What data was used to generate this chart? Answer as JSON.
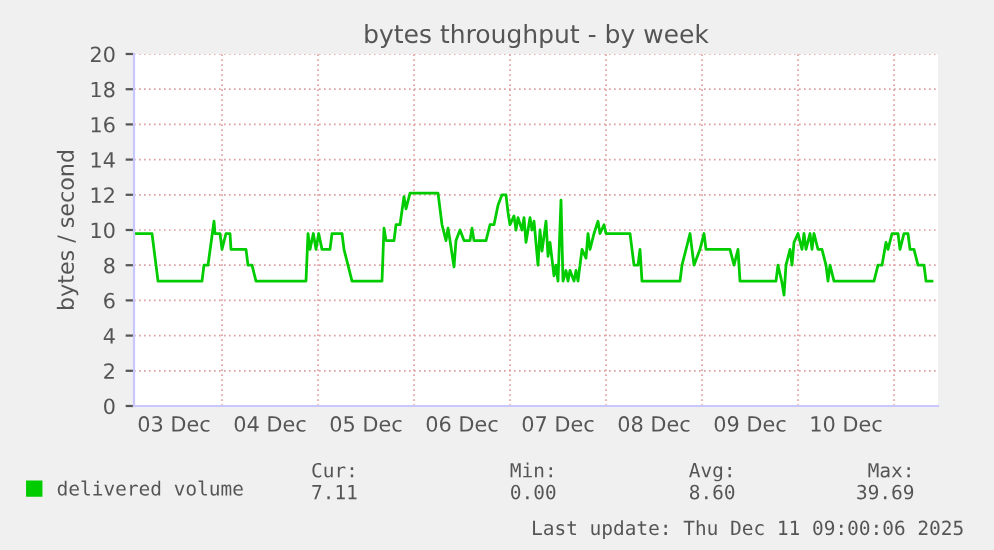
{
  "chart_data": {
    "type": "line",
    "title": "bytes throughput - by week",
    "ylabel": "bytes / second",
    "x": [
      "2025-12-03T02:00",
      "2025-12-03T06:30",
      "2025-12-03T07:30",
      "2025-12-03T08:00",
      "2025-12-03T19:00",
      "2025-12-03T19:30",
      "2025-12-03T20:30",
      "2025-12-03T22:00",
      "2025-12-03T22:15",
      "2025-12-03T23:30",
      "2025-12-04T00:00",
      "2025-12-04T01:00",
      "2025-12-04T02:00",
      "2025-12-04T02:15",
      "2025-12-04T06:00",
      "2025-12-04T06:30",
      "2025-12-04T07:30",
      "2025-12-04T08:30",
      "2025-12-04T21:00",
      "2025-12-04T21:30",
      "2025-12-04T22:00",
      "2025-12-04T22:50",
      "2025-12-04T23:30",
      "2025-12-05T00:10",
      "2025-12-05T01:00",
      "2025-12-05T03:00",
      "2025-12-05T03:30",
      "2025-12-05T06:00",
      "2025-12-05T06:30",
      "2025-12-05T07:30",
      "2025-12-05T08:30",
      "2025-12-05T16:00",
      "2025-12-05T16:30",
      "2025-12-05T17:00",
      "2025-12-05T19:00",
      "2025-12-05T19:30",
      "2025-12-05T20:30",
      "2025-12-05T21:30",
      "2025-12-05T22:00",
      "2025-12-05T23:00",
      "2025-12-06T06:00",
      "2025-12-06T06:30",
      "2025-12-06T07:00",
      "2025-12-06T08:00",
      "2025-12-06T08:30",
      "2025-12-06T09:00",
      "2025-12-06T10:00",
      "2025-12-06T10:30",
      "2025-12-06T11:30",
      "2025-12-06T12:30",
      "2025-12-06T14:00",
      "2025-12-06T14:30",
      "2025-12-06T15:00",
      "2025-12-06T18:00",
      "2025-12-06T19:00",
      "2025-12-06T20:00",
      "2025-12-06T21:00",
      "2025-12-06T22:00",
      "2025-12-06T23:00",
      "2025-12-06T23:30",
      "2025-12-07T00:00",
      "2025-12-07T01:00",
      "2025-12-07T01:30",
      "2025-12-07T02:00",
      "2025-12-07T03:00",
      "2025-12-07T03:30",
      "2025-12-07T04:00",
      "2025-12-07T05:00",
      "2025-12-07T05:30",
      "2025-12-07T06:00",
      "2025-12-07T07:00",
      "2025-12-07T07:30",
      "2025-12-07T08:00",
      "2025-12-07T09:00",
      "2025-12-07T09:30",
      "2025-12-07T10:00",
      "2025-12-07T11:00",
      "2025-12-07T11:30",
      "2025-12-07T12:00",
      "2025-12-07T12:45",
      "2025-12-07T13:15",
      "2025-12-07T14:00",
      "2025-12-07T14:30",
      "2025-12-07T15:00",
      "2025-12-07T16:00",
      "2025-12-07T16:30",
      "2025-12-07T17:00",
      "2025-12-07T18:00",
      "2025-12-07T19:00",
      "2025-12-07T19:30",
      "2025-12-07T20:00",
      "2025-12-07T21:00",
      "2025-12-07T22:00",
      "2025-12-07T22:30",
      "2025-12-07T23:30",
      "2025-12-08T00:00",
      "2025-12-08T06:00",
      "2025-12-08T06:30",
      "2025-12-08T07:00",
      "2025-12-08T08:00",
      "2025-12-08T08:30",
      "2025-12-08T09:00",
      "2025-12-08T18:30",
      "2025-12-08T19:00",
      "2025-12-08T20:00",
      "2025-12-08T21:00",
      "2025-12-08T22:00",
      "2025-12-08T23:30",
      "2025-12-09T00:30",
      "2025-12-09T01:00",
      "2025-12-09T07:00",
      "2025-12-09T08:00",
      "2025-12-09T09:00",
      "2025-12-09T09:30",
      "2025-12-09T18:30",
      "2025-12-09T19:00",
      "2025-12-09T20:00",
      "2025-12-09T20:30",
      "2025-12-09T21:00",
      "2025-12-09T22:00",
      "2025-12-09T22:30",
      "2025-12-09T23:00",
      "2025-12-10T00:00",
      "2025-12-10T01:00",
      "2025-12-10T01:30",
      "2025-12-10T02:00",
      "2025-12-10T03:00",
      "2025-12-10T03:30",
      "2025-12-10T04:00",
      "2025-12-10T05:00",
      "2025-12-10T06:00",
      "2025-12-10T07:00",
      "2025-12-10T07:30",
      "2025-12-10T08:00",
      "2025-12-10T09:00",
      "2025-12-10T19:00",
      "2025-12-10T20:00",
      "2025-12-10T21:00",
      "2025-12-10T22:00",
      "2025-12-10T22:30",
      "2025-12-10T23:30",
      "2025-12-11T01:00",
      "2025-12-11T01:30",
      "2025-12-11T02:30",
      "2025-12-11T03:30",
      "2025-12-11T04:00",
      "2025-12-11T05:00",
      "2025-12-11T06:00",
      "2025-12-11T07:30",
      "2025-12-11T08:00",
      "2025-12-11T09:30"
    ],
    "series": [
      {
        "name": "delivered volume",
        "color": "#00cc00",
        "values": [
          9.8,
          9.8,
          8.0,
          7.1,
          7.1,
          8.0,
          8.0,
          10.5,
          9.8,
          9.8,
          8.9,
          9.8,
          9.8,
          8.9,
          8.9,
          8.0,
          8.0,
          7.1,
          7.1,
          9.8,
          8.9,
          9.8,
          8.9,
          9.8,
          8.9,
          8.9,
          9.8,
          9.8,
          8.9,
          8.0,
          7.1,
          7.1,
          10.1,
          9.4,
          9.4,
          10.3,
          10.3,
          11.9,
          11.2,
          12.1,
          12.1,
          11.2,
          10.3,
          9.4,
          10.1,
          9.4,
          7.9,
          9.4,
          10.0,
          9.4,
          9.4,
          10.1,
          9.4,
          9.4,
          10.3,
          10.3,
          11.4,
          12.0,
          12.0,
          11.0,
          10.3,
          10.8,
          10.0,
          10.7,
          10.0,
          10.7,
          9.3,
          10.7,
          10.0,
          10.5,
          8.0,
          10.0,
          8.8,
          10.5,
          8.5,
          9.3,
          7.4,
          8.0,
          7.1,
          11.7,
          7.1,
          7.7,
          7.1,
          7.7,
          7.1,
          7.7,
          7.1,
          8.9,
          8.4,
          9.8,
          8.9,
          9.8,
          10.5,
          9.8,
          10.3,
          9.8,
          9.8,
          8.9,
          8.0,
          8.0,
          8.9,
          7.1,
          7.1,
          8.0,
          8.9,
          9.8,
          8.0,
          8.9,
          9.8,
          8.9,
          8.9,
          8.0,
          8.9,
          7.1,
          7.1,
          8.0,
          7.0,
          6.3,
          8.0,
          8.9,
          8.0,
          9.3,
          9.8,
          8.9,
          9.8,
          8.9,
          9.8,
          8.9,
          9.8,
          8.9,
          8.9,
          8.0,
          7.1,
          8.0,
          7.1,
          7.1,
          8.0,
          8.0,
          9.3,
          8.9,
          9.8,
          9.8,
          8.9,
          9.8,
          9.8,
          8.9,
          8.9,
          8.0,
          8.0,
          7.1,
          7.1
        ]
      }
    ],
    "xlim": [
      "2025-12-03T02:00",
      "2025-12-11T11:00"
    ],
    "xticks": [
      {
        "value": "2025-12-03T12:00",
        "label": "03 Dec"
      },
      {
        "value": "2025-12-04",
        "label": null
      },
      {
        "value": "2025-12-04T12:00",
        "label": "04 Dec"
      },
      {
        "value": "2025-12-05",
        "label": null
      },
      {
        "value": "2025-12-05T12:00",
        "label": "05 Dec"
      },
      {
        "value": "2025-12-06",
        "label": null
      },
      {
        "value": "2025-12-06T12:00",
        "label": "06 Dec"
      },
      {
        "value": "2025-12-07",
        "label": null
      },
      {
        "value": "2025-12-07T12:00",
        "label": "07 Dec"
      },
      {
        "value": "2025-12-08",
        "label": null
      },
      {
        "value": "2025-12-08T12:00",
        "label": "08 Dec"
      },
      {
        "value": "2025-12-09",
        "label": null
      },
      {
        "value": "2025-12-09T12:00",
        "label": "09 Dec"
      },
      {
        "value": "2025-12-10",
        "label": null
      },
      {
        "value": "2025-12-10T12:00",
        "label": "10 Dec"
      },
      {
        "value": "2025-12-11",
        "label": null
      }
    ],
    "ylim": [
      0,
      20
    ],
    "yticks": [
      0,
      2,
      4,
      6,
      8,
      10,
      12,
      14,
      16,
      18,
      20
    ],
    "grid": true,
    "legend": "bottom left",
    "annotations": [
      "Cur:\n7.11",
      "Min:\n0.00",
      "Avg:\n8.60",
      "Max:\n39.69",
      "Last update: Thu Dec 11 09:00:06 2025"
    ]
  }
}
